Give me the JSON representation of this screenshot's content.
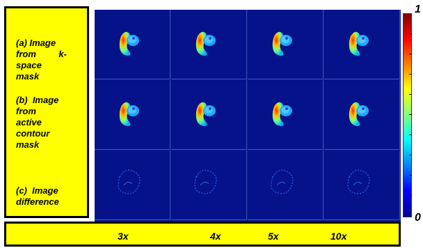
{
  "row_labels": [
    {
      "line1": "(a)  Image",
      "line2": "from         k-",
      "line3": "space",
      "line4": "mask"
    },
    {
      "line1": "(b)  Image",
      "line2": "from",
      "line3": "active",
      "line4": "contour",
      "line5": "mask"
    },
    {
      "line1": "(c)  Image",
      "line2": "difference"
    }
  ],
  "colorbar": {
    "max_label": "1",
    "min_label": "0"
  },
  "factors": [
    "3x",
    "4x",
    "5x",
    "10x"
  ],
  "colors": {
    "panel_yellow": "#ffff00",
    "image_background": "#06128a"
  }
}
